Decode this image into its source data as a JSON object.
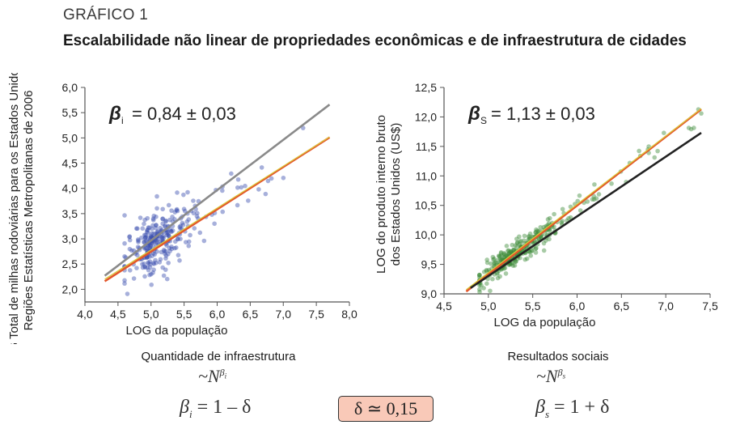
{
  "header": {
    "label": "GRÁFICO 1",
    "title": "Escalabilidade não linear de propriedades econômicas e de infraestrutura de cidades"
  },
  "chart_data": [
    {
      "type": "scatter",
      "xlabel": "LOG da população",
      "ylabel_lines": [
        "LOG Total de milhas rodoviárias para os Estados Unidos –",
        "Regiões Estatísticas Metropolitanas de 2006"
      ],
      "xlim": [
        4.0,
        8.0
      ],
      "ylim": [
        1.75,
        6.0
      ],
      "xticks": [
        "4,0",
        "4,5",
        "5,0",
        "5,5",
        "6,0",
        "6,5",
        "7,0",
        "7,5",
        "8,0"
      ],
      "xtick_values": [
        4.0,
        4.5,
        5.0,
        5.5,
        6.0,
        6.5,
        7.0,
        7.5,
        8.0
      ],
      "yticks": [
        "2,0",
        "2,5",
        "3,0",
        "3,5",
        "4,0",
        "4,5",
        "5,0",
        "5,5",
        "6,0"
      ],
      "ytick_values": [
        2.0,
        2.5,
        3.0,
        3.5,
        4.0,
        4.5,
        5.0,
        5.5,
        6.0
      ],
      "annotation": {
        "symbol": "β",
        "subscript": "i",
        "text": "= 0,84 ± 0,03"
      },
      "point_color": "#3c4fb0",
      "point_cloud": {
        "n": 300,
        "x_mode": 4.9,
        "x_min": 4.6,
        "x_max": 7.3,
        "slope": 0.84,
        "intercept": -1.35,
        "spread": 0.26,
        "seed": 11
      },
      "lines": [
        {
          "name": "fit",
          "color": "#e3562b",
          "x": [
            4.3,
            7.7
          ],
          "y": [
            2.16,
            5.01
          ]
        },
        {
          "name": "inner-fit",
          "color": "#d9c93a",
          "x": [
            4.3,
            7.7
          ],
          "y": [
            2.2,
            5.02
          ]
        },
        {
          "name": "linear-reference",
          "color": "#8a8a8a",
          "x": [
            4.3,
            7.7
          ],
          "y": [
            2.27,
            5.66
          ]
        }
      ],
      "caption": "Quantidade de infraestrutura",
      "scaling": {
        "base": "~N",
        "exponent": "β",
        "exponent_sub": "i"
      },
      "relation": {
        "symbol": "β",
        "sub": "i",
        "text": "= 1 – δ"
      }
    },
    {
      "type": "scatter",
      "xlabel": "LOG da população",
      "ylabel_lines": [
        "LOG do produto interno bruto",
        "dos Estados Unidos (US$)"
      ],
      "xlim": [
        4.5,
        7.5
      ],
      "ylim": [
        9.0,
        12.5
      ],
      "xticks": [
        "4,5",
        "5,0",
        "5,5",
        "6,0",
        "6,5",
        "7,0",
        "7,5"
      ],
      "xtick_values": [
        4.5,
        5.0,
        5.5,
        6.0,
        6.5,
        7.0,
        7.5
      ],
      "yticks": [
        "9,0",
        "9,5",
        "10,0",
        "10,5",
        "11,0",
        "11,5",
        "12,0",
        "12,5"
      ],
      "ytick_values": [
        9.0,
        9.5,
        10.0,
        10.5,
        11.0,
        11.5,
        12.0,
        12.5
      ],
      "annotation": {
        "symbol": "β",
        "subscript": "S",
        "text": "= 1,13 ± 0,03"
      },
      "point_color": "#3e8c3a",
      "point_cloud": {
        "n": 320,
        "x_mode": 5.1,
        "x_min": 4.9,
        "x_max": 7.4,
        "slope": 1.13,
        "intercept": 3.7,
        "spread": 0.11,
        "seed": 23
      },
      "lines": [
        {
          "name": "fit",
          "color": "#e3562b",
          "x": [
            4.75,
            7.4
          ],
          "y": [
            9.04,
            12.13
          ]
        },
        {
          "name": "inner-fit",
          "color": "#d9c93a",
          "x": [
            4.75,
            7.4
          ],
          "y": [
            9.07,
            12.14
          ]
        },
        {
          "name": "linear-reference",
          "color": "#222222",
          "x": [
            4.8,
            7.4
          ],
          "y": [
            9.1,
            11.73
          ]
        }
      ],
      "caption": "Resultados sociais",
      "scaling": {
        "base": "~N",
        "exponent": "β",
        "exponent_sub": "s"
      },
      "relation": {
        "symbol": "β",
        "sub": "s",
        "text": "= 1 + δ"
      }
    }
  ],
  "delta_box": "δ ≃ 0,15",
  "colors": {
    "title": "#1a1a1a",
    "delta_fill": "#f9c9b8"
  }
}
